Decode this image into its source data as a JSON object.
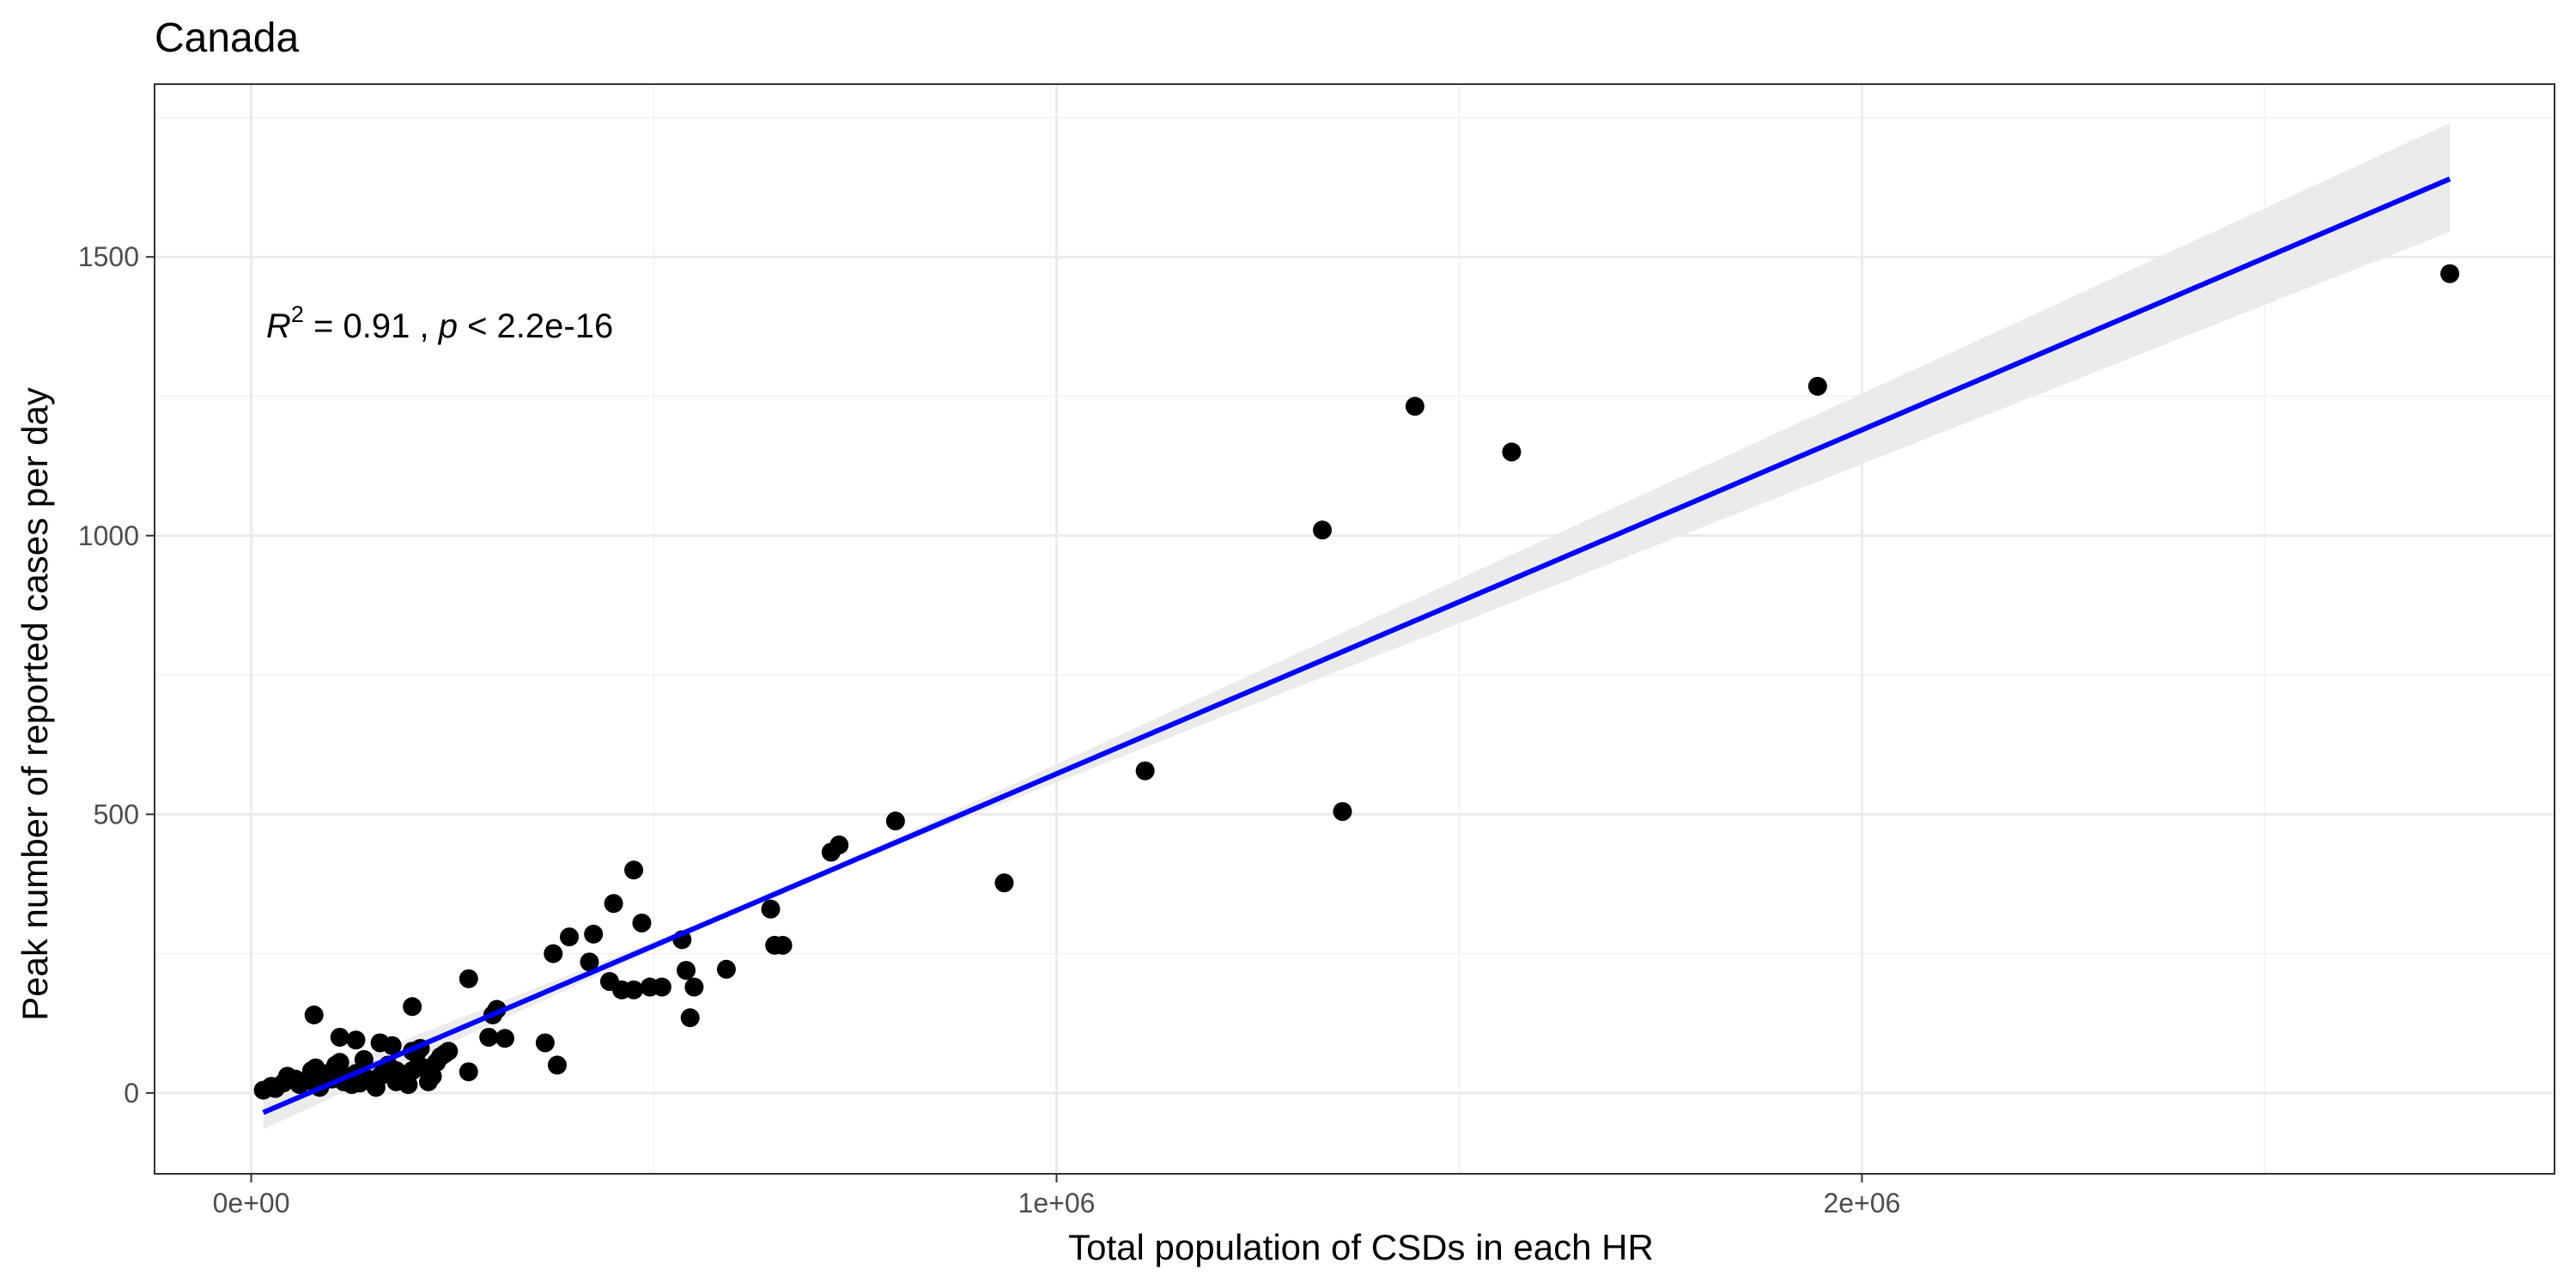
{
  "chart_data": {
    "type": "scatter",
    "title": "Canada",
    "xlabel": "Total population of CSDs in each HR",
    "ylabel": "Peak number of reported cases per day",
    "xlim": [
      -120000,
      2860000
    ],
    "ylim": [
      -145,
      1810
    ],
    "x_ticks": [
      0,
      1000000,
      2000000
    ],
    "x_tick_labels": [
      "0e+00",
      "1e+06",
      "2e+06"
    ],
    "x_minor_ticks": [
      500000,
      1500000,
      2500000
    ],
    "y_ticks": [
      0,
      500,
      1000,
      1500
    ],
    "y_tick_labels": [
      "0",
      "500",
      "1000",
      "1500"
    ],
    "y_minor_ticks": [
      250,
      750,
      1250,
      1750
    ],
    "grid": true,
    "annotation": {
      "r_symbol": "R",
      "r_exponent": "2",
      "r_value": " = 0.91 , ",
      "p_symbol": "p",
      "p_value": " < 2.2e-16"
    },
    "fit": {
      "type": "linear",
      "color": "#0000ff",
      "band_color": "#ebebeb",
      "x_range": [
        15000,
        2730000
      ],
      "y_range": [
        -35,
        1640
      ],
      "band_lower_at_start": -5,
      "band_upper_at_start": -65,
      "band_upper_at_end": 1740,
      "band_lower_at_end": 1545
    },
    "point_color": "#000000",
    "points": [
      [
        15000,
        5
      ],
      [
        25000,
        12
      ],
      [
        30000,
        8
      ],
      [
        40000,
        18
      ],
      [
        45000,
        30
      ],
      [
        55000,
        25
      ],
      [
        60000,
        15
      ],
      [
        70000,
        22
      ],
      [
        75000,
        40
      ],
      [
        80000,
        45
      ],
      [
        85000,
        10
      ],
      [
        90000,
        30
      ],
      [
        95000,
        35
      ],
      [
        100000,
        25
      ],
      [
        105000,
        50
      ],
      [
        110000,
        55
      ],
      [
        115000,
        20
      ],
      [
        120000,
        30
      ],
      [
        125000,
        15
      ],
      [
        130000,
        35
      ],
      [
        135000,
        18
      ],
      [
        140000,
        60
      ],
      [
        145000,
        25
      ],
      [
        150000,
        22
      ],
      [
        155000,
        10
      ],
      [
        160000,
        30
      ],
      [
        165000,
        40
      ],
      [
        170000,
        50
      ],
      [
        175000,
        85
      ],
      [
        180000,
        20
      ],
      [
        185000,
        35
      ],
      [
        190000,
        25
      ],
      [
        195000,
        15
      ],
      [
        200000,
        40
      ],
      [
        205000,
        70
      ],
      [
        210000,
        80
      ],
      [
        215000,
        45
      ],
      [
        220000,
        20
      ],
      [
        225000,
        30
      ],
      [
        230000,
        55
      ],
      [
        235000,
        65
      ],
      [
        240000,
        70
      ],
      [
        245000,
        75
      ],
      [
        110000,
        100
      ],
      [
        130000,
        95
      ],
      [
        160000,
        90
      ],
      [
        200000,
        75
      ],
      [
        78000,
        140
      ],
      [
        200000,
        155
      ],
      [
        180000,
        40
      ],
      [
        270000,
        205
      ],
      [
        270000,
        38
      ],
      [
        295000,
        100
      ],
      [
        300000,
        140
      ],
      [
        305000,
        150
      ],
      [
        315000,
        98
      ],
      [
        365000,
        90
      ],
      [
        375000,
        250
      ],
      [
        380000,
        50
      ],
      [
        395000,
        280
      ],
      [
        420000,
        235
      ],
      [
        425000,
        285
      ],
      [
        445000,
        200
      ],
      [
        450000,
        340
      ],
      [
        460000,
        185
      ],
      [
        475000,
        185
      ],
      [
        475000,
        400
      ],
      [
        485000,
        305
      ],
      [
        495000,
        190
      ],
      [
        510000,
        190
      ],
      [
        535000,
        275
      ],
      [
        540000,
        220
      ],
      [
        545000,
        135
      ],
      [
        550000,
        190
      ],
      [
        590000,
        222
      ],
      [
        645000,
        330
      ],
      [
        650000,
        265
      ],
      [
        660000,
        265
      ],
      [
        720000,
        432
      ],
      [
        730000,
        445
      ],
      [
        800000,
        488
      ],
      [
        935000,
        377
      ],
      [
        1110000,
        578
      ],
      [
        1330000,
        1010
      ],
      [
        1355000,
        505
      ],
      [
        1445000,
        1232
      ],
      [
        1565000,
        1150
      ],
      [
        1945000,
        1268
      ],
      [
        2730000,
        1470
      ]
    ]
  }
}
